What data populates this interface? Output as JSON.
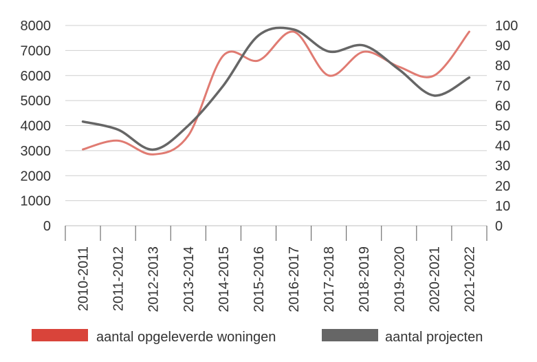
{
  "chart_data": {
    "type": "line",
    "categories": [
      "2010-2011",
      "2011-2012",
      "2012-2013",
      "2013-2014",
      "2014-2015",
      "2015-2016",
      "2016-2017",
      "2017-2018",
      "2018-2019",
      "2019-2020",
      "2020-2021",
      "2021-2022"
    ],
    "series": [
      {
        "name": "aantal opgeleverde woningen",
        "axis": "left",
        "color": "#e07b72",
        "values": [
          3050,
          3400,
          2850,
          3600,
          6800,
          6600,
          7750,
          6000,
          6950,
          6350,
          6000,
          7750
        ]
      },
      {
        "name": "aantal projecten",
        "axis": "right",
        "color": "#666666",
        "values": [
          52,
          48,
          38,
          50,
          70,
          95,
          98,
          87,
          90,
          78,
          65,
          74
        ]
      }
    ],
    "y_left": {
      "ylim": [
        0,
        8000
      ],
      "ticks": [
        "0",
        "1000",
        "2000",
        "3000",
        "4000",
        "5000",
        "6000",
        "7000",
        "8000"
      ]
    },
    "y_right": {
      "ylim": [
        0,
        100
      ],
      "ticks": [
        "0",
        "10",
        "20",
        "30",
        "40",
        "50",
        "60",
        "70",
        "80",
        "90",
        "100"
      ]
    },
    "grid": true,
    "legend": "bottom",
    "legend_swatch_colors": {
      "woningen": "#d9443a",
      "projecten": "#666666"
    }
  }
}
